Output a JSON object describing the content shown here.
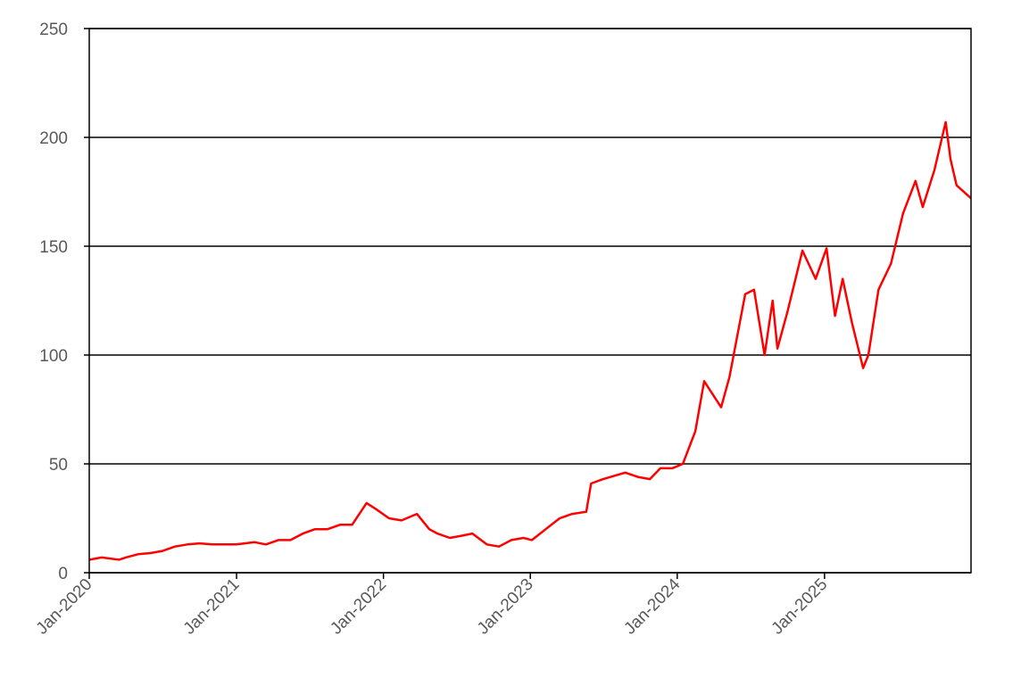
{
  "chart_data": {
    "type": "line",
    "title": "",
    "xlabel": "",
    "ylabel": "",
    "ylim": [
      0,
      250
    ],
    "xlim": [
      "2020-01-01",
      "2025-12-31"
    ],
    "y_ticks": [
      0,
      50,
      100,
      150,
      200,
      250
    ],
    "x_ticks": [
      {
        "date": "2020-01-01",
        "label": "Jan-2020"
      },
      {
        "date": "2021-01-01",
        "label": "Jan-2021"
      },
      {
        "date": "2022-01-01",
        "label": "Jan-2022"
      },
      {
        "date": "2023-01-01",
        "label": "Jan-2023"
      },
      {
        "date": "2024-01-01",
        "label": "Jan-2024"
      },
      {
        "date": "2025-01-01",
        "label": "Jan-2025"
      }
    ],
    "grid": "horizontal",
    "line_color": "#ff0000",
    "series": [
      {
        "x": [
          "2020-01-02",
          "2020-02-01",
          "2020-03-15",
          "2020-04-01",
          "2020-05-01",
          "2020-06-01",
          "2020-07-01",
          "2020-08-01",
          "2020-09-01",
          "2020-10-01",
          "2020-11-01",
          "2020-12-01",
          "2021-01-01",
          "2021-02-15",
          "2021-03-15",
          "2021-04-15",
          "2021-05-15",
          "2021-06-15",
          "2021-07-15",
          "2021-08-15",
          "2021-09-15",
          "2021-10-15",
          "2021-11-20",
          "2021-12-15",
          "2022-01-15",
          "2022-02-15",
          "2022-03-25",
          "2022-04-25",
          "2022-05-15",
          "2022-06-15",
          "2022-07-15",
          "2022-08-10",
          "2022-09-15",
          "2022-10-15",
          "2022-11-15",
          "2022-12-15",
          "2023-01-05",
          "2023-02-15",
          "2023-03-15",
          "2023-04-15",
          "2023-05-20",
          "2023-06-01",
          "2023-07-01",
          "2023-08-25",
          "2023-09-25",
          "2023-10-25",
          "2023-11-20",
          "2023-12-20",
          "2024-01-15",
          "2024-02-15",
          "2024-03-08",
          "2024-04-19",
          "2024-05-10",
          "2024-06-18",
          "2024-07-10",
          "2024-08-05",
          "2024-08-25",
          "2024-09-06",
          "2024-10-01",
          "2024-11-07",
          "2024-12-10",
          "2025-01-06",
          "2025-01-27",
          "2025-02-15",
          "2025-03-10",
          "2025-04-07",
          "2025-04-20",
          "2025-05-15",
          "2025-06-15",
          "2025-07-15",
          "2025-08-15",
          "2025-09-02",
          "2025-10-01",
          "2025-10-29",
          "2025-11-10",
          "2025-11-25",
          "2025-12-31"
        ],
        "y": [
          6,
          7,
          6,
          7,
          8.5,
          9,
          10,
          12,
          13,
          13.5,
          13,
          13,
          13,
          14,
          13,
          15,
          15,
          18,
          20,
          20,
          22,
          22,
          32,
          29,
          25,
          24,
          27,
          20,
          18,
          16,
          17,
          18,
          13,
          12,
          15,
          16,
          15,
          21,
          25,
          27,
          28,
          41,
          43,
          46,
          44,
          43,
          48,
          48,
          50,
          65,
          88,
          76,
          90,
          128,
          130,
          100,
          125,
          103,
          120,
          148,
          135,
          149,
          118,
          135,
          115,
          94,
          100,
          130,
          142,
          165,
          180,
          168,
          185,
          207,
          190,
          178,
          172
        ]
      }
    ]
  }
}
